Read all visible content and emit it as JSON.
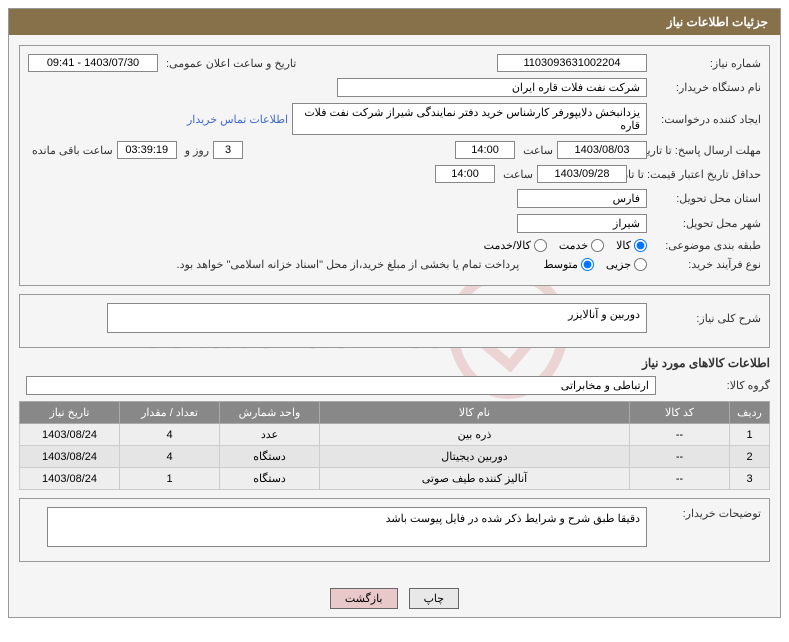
{
  "header": {
    "title": "جزئیات اطلاعات نیاز"
  },
  "fields": {
    "need_number_label": "شماره نیاز:",
    "need_number": "1103093631002204",
    "publish_date_label": "تاریخ و ساعت اعلان عمومی:",
    "publish_date": "1403/07/30 - 09:41",
    "buyer_org_label": "نام دستگاه خریدار:",
    "buyer_org": "شرکت نفت فلات قاره ایران",
    "requester_label": "ایجاد کننده درخواست:",
    "requester": "یزدانبخش دلایپورفر کارشناس خرید دفتر نمایندگی شیراز شرکت نفت فلات قاره",
    "contact_link": "اطلاعات تماس خریدار",
    "response_deadline_label": "مهلت ارسال پاسخ: تا تاریخ:",
    "response_date": "1403/08/03",
    "time_label": "ساعت",
    "response_time": "14:00",
    "days_val": "3",
    "days_and": "روز و",
    "countdown": "03:39:19",
    "remaining_label": "ساعت باقی مانده",
    "price_validity_label": "حداقل تاریخ اعتبار قیمت: تا تاریخ:",
    "price_validity_date": "1403/09/28",
    "price_validity_time": "14:00",
    "delivery_province_label": "استان محل تحویل:",
    "delivery_province": "فارس",
    "delivery_city_label": "شهر محل تحویل:",
    "delivery_city": "شیراز",
    "category_label": "طبقه بندی موضوعی:",
    "cat_goods": "کالا",
    "cat_service": "خدمت",
    "cat_both": "کالا/خدمت",
    "process_label": "نوع فرآیند خرید:",
    "proc_partial": "جزیی",
    "proc_medium": "متوسط",
    "payment_note": "پرداخت تمام یا بخشی از مبلغ خرید،از محل \"اسناد خزانه اسلامی\" خواهد بود.",
    "summary_label": "شرح کلی نیاز:",
    "summary": "دوربین و آنالایزر",
    "goods_title": "اطلاعات کالاهای مورد نیاز",
    "goods_group_label": "گروه کالا:",
    "goods_group": "ارتباطی و مخابراتی",
    "buyer_notes_label": "توضیحات خریدار:",
    "buyer_notes": "دقیقا طبق شرح و شرایط ذکر شده در فایل پیوست باشد"
  },
  "table": {
    "headers": {
      "row": "ردیف",
      "code": "کد کالا",
      "name": "نام کالا",
      "unit": "واحد شمارش",
      "qty": "تعداد / مقدار",
      "date": "تاریخ نیاز"
    },
    "rows": [
      {
        "n": "1",
        "code": "--",
        "name": "ذره بین",
        "unit": "عدد",
        "qty": "4",
        "date": "1403/08/24"
      },
      {
        "n": "2",
        "code": "--",
        "name": "دوربین دیجیتال",
        "unit": "دستگاه",
        "qty": "4",
        "date": "1403/08/24"
      },
      {
        "n": "3",
        "code": "--",
        "name": "آنالیز کننده طیف صوتی",
        "unit": "دستگاه",
        "qty": "1",
        "date": "1403/08/24"
      }
    ]
  },
  "buttons": {
    "print": "چاپ",
    "back": "بازگشت"
  }
}
